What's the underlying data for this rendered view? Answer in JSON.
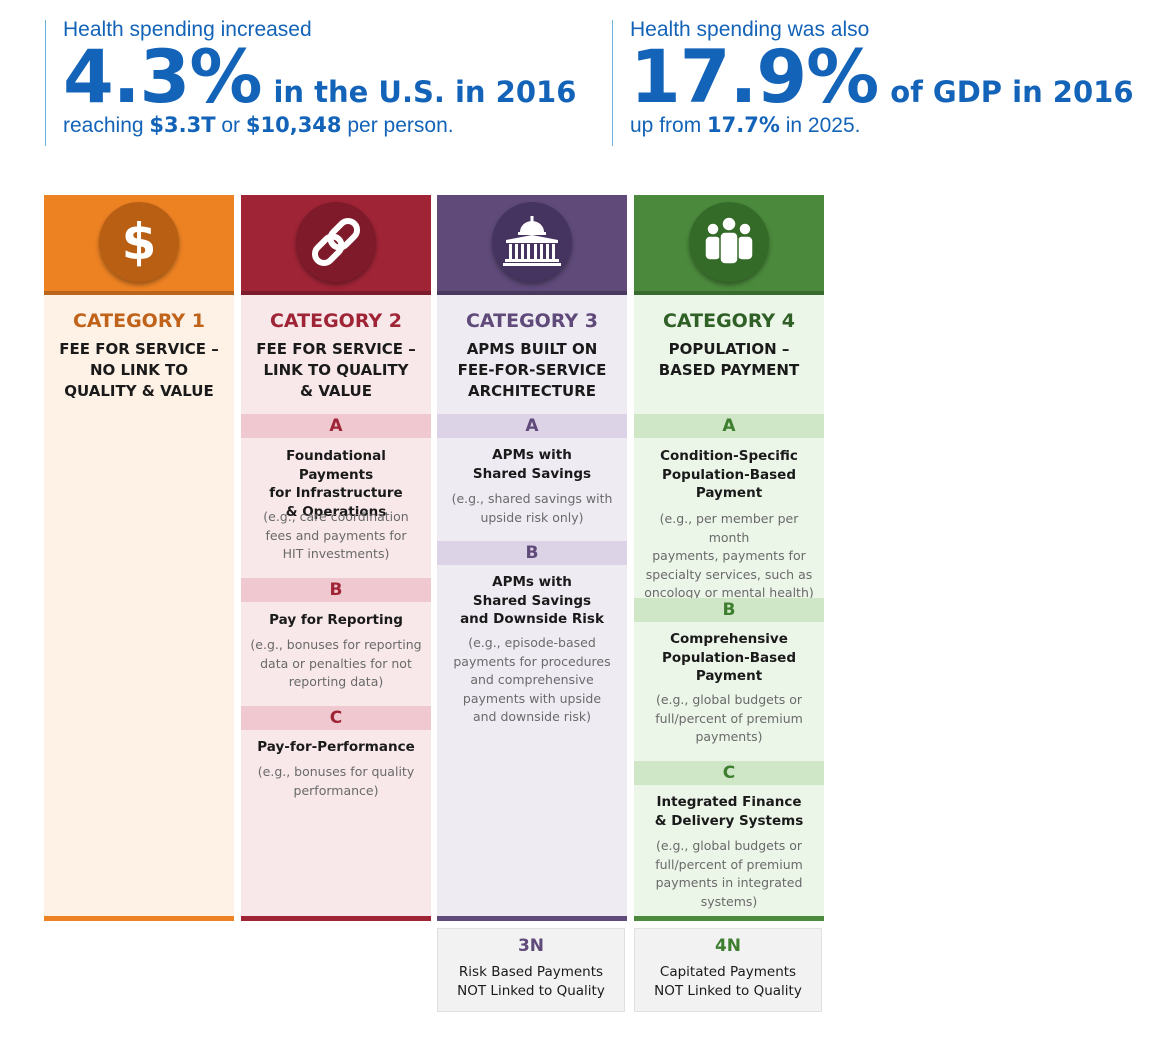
{
  "stats": [
    {
      "intro": "Health spending increased",
      "big": "4.3%",
      "big_suffix": "in the U.S. in 2016",
      "detail_prefix": "reaching ",
      "detail_v1": "$3.3T",
      "detail_mid": " or ",
      "detail_v2": "$10,348",
      "detail_suffix": " per person."
    },
    {
      "intro": "Health spending was also",
      "big": "17.9%",
      "big_suffix": "of GDP in 2016",
      "detail_prefix": "up from ",
      "detail_v1": "17.7%",
      "detail_suffix": " in 2025."
    }
  ],
  "categories": [
    {
      "title": "CATEGORY 1",
      "subtitle": [
        "FEE FOR SERVICE –",
        "NO LINK TO",
        "QUALITY & VALUE"
      ],
      "icon": "dollar-icon",
      "color": "#ed8223",
      "sections": []
    },
    {
      "title": "CATEGORY 2",
      "subtitle": [
        "FEE FOR SERVICE –",
        "LINK TO QUALITY",
        "& VALUE"
      ],
      "icon": "chain-link-icon",
      "color": "#9f2436",
      "sections": [
        {
          "letter": "A",
          "title": [
            "Foundational Payments",
            "for Infrastructure",
            "& Operations"
          ],
          "example": [
            "(e.g., care coordination",
            "fees and payments for",
            "HIT investments)"
          ]
        },
        {
          "letter": "B",
          "title": [
            "Pay for Reporting"
          ],
          "example": [
            "(e.g., bonuses for reporting",
            "data or penalties for not",
            "reporting data)"
          ]
        },
        {
          "letter": "C",
          "title": [
            "Pay-for-Performance"
          ],
          "example": [
            "(e.g., bonuses for quality",
            "performance)"
          ]
        }
      ]
    },
    {
      "title": "CATEGORY 3",
      "subtitle": [
        "APMS BUILT ON",
        "FEE-FOR-SERVICE",
        "ARCHITECTURE"
      ],
      "icon": "capitol-building-icon",
      "color": "#5f4a7a",
      "sections": [
        {
          "letter": "A",
          "title": [
            "APMs with",
            "Shared Savings"
          ],
          "example": [
            "(e.g., shared savings with",
            "upside risk only)"
          ]
        },
        {
          "letter": "B",
          "title": [
            "APMs with",
            "Shared Savings",
            "and Downside Risk"
          ],
          "example": [
            "(e.g., episode-based",
            "payments for procedures",
            "and comprehensive",
            "payments with upside",
            "and downside risk)"
          ]
        }
      ]
    },
    {
      "title": "CATEGORY 4",
      "subtitle": [
        "POPULATION –",
        "BASED PAYMENT"
      ],
      "icon": "people-group-icon",
      "color": "#4b8a3c",
      "sections": [
        {
          "letter": "A",
          "title": [
            "Condition-Specific",
            "Population-Based",
            "Payment"
          ],
          "example": [
            "(e.g., per member per month",
            "payments, payments for",
            "specialty services, such as",
            "oncology or mental health)"
          ]
        },
        {
          "letter": "B",
          "title": [
            "Comprehensive",
            "Population-Based",
            "Payment"
          ],
          "example": [
            "(e.g., global budgets or",
            "full/percent of premium",
            "payments)"
          ]
        },
        {
          "letter": "C",
          "title": [
            "Integrated Finance",
            "& Delivery Systems"
          ],
          "example": [
            "(e.g., global budgets or",
            "full/percent of premium",
            "payments in integrated",
            "systems)"
          ]
        }
      ]
    }
  ],
  "footers": [
    {
      "code": "3N",
      "lines": [
        "Risk Based Payments",
        "NOT Linked to Quality"
      ]
    },
    {
      "code": "4N",
      "lines": [
        "Capitated Payments",
        "NOT Linked to Quality"
      ]
    }
  ]
}
